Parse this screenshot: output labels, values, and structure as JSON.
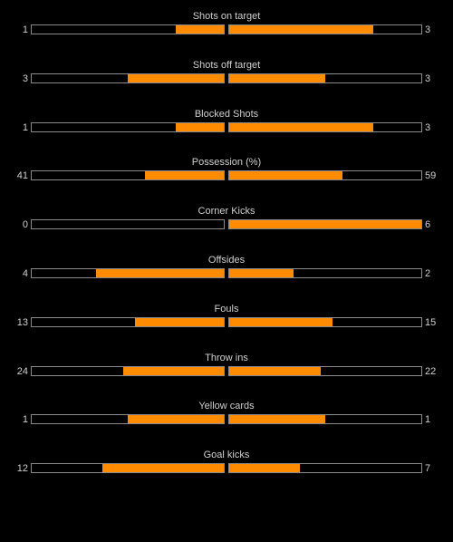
{
  "colors": {
    "background": "#000000",
    "bar_fill": "#ff8c00",
    "bar_border": "#8a8a8a",
    "text": "#cfcfcf"
  },
  "stats": [
    {
      "label": "Shots on target",
      "home": "1",
      "away": "3",
      "home_fraction": 0.25,
      "away_fraction": 0.75
    },
    {
      "label": "Shots off target",
      "home": "3",
      "away": "3",
      "home_fraction": 0.5,
      "away_fraction": 0.5
    },
    {
      "label": "Blocked Shots",
      "home": "1",
      "away": "3",
      "home_fraction": 0.25,
      "away_fraction": 0.75
    },
    {
      "label": "Possession (%)",
      "home": "41",
      "away": "59",
      "home_fraction": 0.41,
      "away_fraction": 0.59
    },
    {
      "label": "Corner Kicks",
      "home": "0",
      "away": "6",
      "home_fraction": 0.0,
      "away_fraction": 1.0
    },
    {
      "label": "Offsides",
      "home": "4",
      "away": "2",
      "home_fraction": 0.667,
      "away_fraction": 0.333
    },
    {
      "label": "Fouls",
      "home": "13",
      "away": "15",
      "home_fraction": 0.464,
      "away_fraction": 0.536
    },
    {
      "label": "Throw ins",
      "home": "24",
      "away": "22",
      "home_fraction": 0.522,
      "away_fraction": 0.478
    },
    {
      "label": "Yellow cards",
      "home": "1",
      "away": "1",
      "home_fraction": 0.5,
      "away_fraction": 0.5
    },
    {
      "label": "Goal kicks",
      "home": "12",
      "away": "7",
      "home_fraction": 0.632,
      "away_fraction": 0.368
    }
  ]
}
